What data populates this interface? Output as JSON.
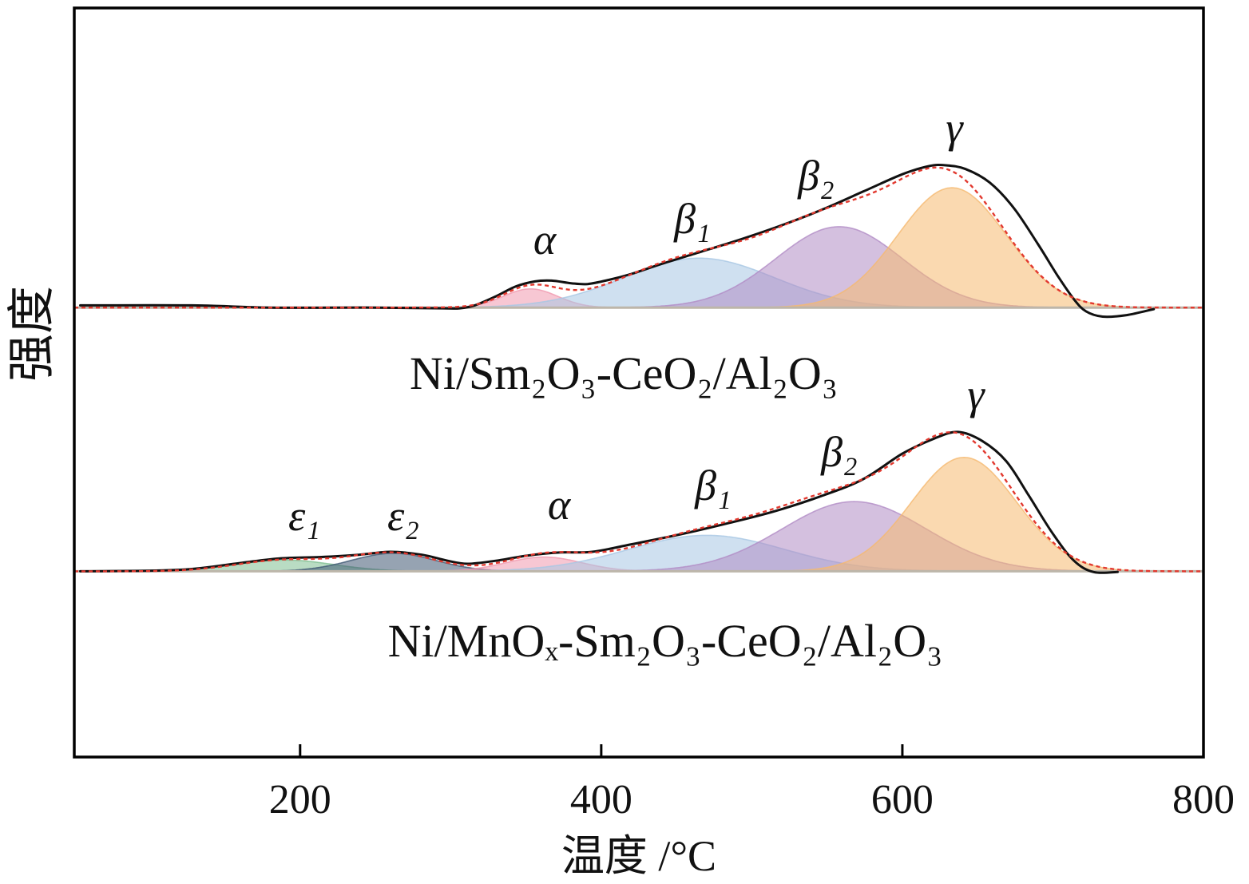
{
  "chart_data": {
    "type": "line",
    "xlabel": "温度 /°C",
    "ylabel": "强度",
    "xlim": [
      50,
      800
    ],
    "xticks": [
      200,
      400,
      600,
      800
    ],
    "grid": false,
    "colors": {
      "profile": "#111111",
      "fit": "#e2392f",
      "baseline": "#bdb6aa"
    },
    "profiles": [
      {
        "name": "Ni/Sm₂O₃-CeO₂/Al₂O₃",
        "curve": [
          [
            54,
            0.3
          ],
          [
            128,
            0.3
          ],
          [
            181,
            0.0
          ],
          [
            250,
            0.0
          ],
          [
            295,
            -0.1
          ],
          [
            306,
            -0.1
          ],
          [
            316,
            0.3
          ],
          [
            330,
            1.5
          ],
          [
            343,
            2.8
          ],
          [
            356,
            3.5
          ],
          [
            367,
            3.6
          ],
          [
            380,
            3.25
          ],
          [
            391,
            3.15
          ],
          [
            405,
            3.7
          ],
          [
            420,
            4.5
          ],
          [
            441,
            5.9
          ],
          [
            467,
            7.5
          ],
          [
            494,
            9.2
          ],
          [
            520,
            11.0
          ],
          [
            547,
            13.1
          ],
          [
            574,
            15.5
          ],
          [
            600,
            17.8
          ],
          [
            618,
            18.9
          ],
          [
            629,
            19.0
          ],
          [
            642,
            18.5
          ],
          [
            658,
            16.7
          ],
          [
            674,
            13.3
          ],
          [
            690,
            8.5
          ],
          [
            703,
            4.3
          ],
          [
            714,
            1.1
          ],
          [
            722,
            -0.5
          ],
          [
            733,
            -1.2
          ],
          [
            749,
            -1.0
          ],
          [
            767,
            -0.2
          ]
        ],
        "peaks": [
          {
            "label": "α",
            "center": 353,
            "height": 2.5,
            "sigma": 18,
            "color": "#f099af"
          },
          {
            "label": "β₁",
            "center": 465,
            "height": 6.6,
            "sigma": 50,
            "color": "#a8c7e4"
          },
          {
            "label": "β₂",
            "center": 558,
            "height": 10.8,
            "sigma": 42,
            "color": "#b18cc5"
          },
          {
            "label": "γ",
            "center": 633,
            "height": 16.0,
            "sigma": 36,
            "color": "#f5b970"
          }
        ]
      },
      {
        "name": "Ni/MnOₓ-Sm₂O₃-CeO₂/Al₂O₃",
        "curve": [
          [
            54,
            0.0
          ],
          [
            107,
            0.1
          ],
          [
            133,
            0.4
          ],
          [
            160,
            1.1
          ],
          [
            186,
            1.7
          ],
          [
            213,
            1.9
          ],
          [
            239,
            2.2
          ],
          [
            260,
            2.6
          ],
          [
            281,
            2.2
          ],
          [
            298,
            1.4
          ],
          [
            311,
            1.0
          ],
          [
            330,
            1.4
          ],
          [
            351,
            2.1
          ],
          [
            372,
            2.5
          ],
          [
            394,
            2.6
          ],
          [
            420,
            3.6
          ],
          [
            452,
            4.9
          ],
          [
            484,
            6.4
          ],
          [
            515,
            8.0
          ],
          [
            547,
            10.1
          ],
          [
            574,
            12.3
          ],
          [
            600,
            15.7
          ],
          [
            621,
            17.7
          ],
          [
            637,
            18.6
          ],
          [
            653,
            17.4
          ],
          [
            669,
            14.7
          ],
          [
            684,
            10.1
          ],
          [
            700,
            5.0
          ],
          [
            714,
            1.4
          ],
          [
            727,
            -0.1
          ],
          [
            743,
            -0.1
          ]
        ],
        "peaks": [
          {
            "label": "ε₁",
            "center": 190,
            "height": 1.5,
            "sigma": 32,
            "color": "#80bf92"
          },
          {
            "label": "ε₂",
            "center": 262,
            "height": 2.4,
            "sigma": 28,
            "color": "#3f5873"
          },
          {
            "label": "α",
            "center": 362,
            "height": 1.9,
            "sigma": 25,
            "color": "#f099af"
          },
          {
            "label": "β₁",
            "center": 470,
            "height": 4.8,
            "sigma": 52,
            "color": "#a8c7e4"
          },
          {
            "label": "β₂",
            "center": 568,
            "height": 9.3,
            "sigma": 48,
            "color": "#b18cc5"
          },
          {
            "label": "γ",
            "center": 641,
            "height": 15.2,
            "sigma": 35,
            "color": "#f5b970"
          }
        ]
      }
    ]
  }
}
